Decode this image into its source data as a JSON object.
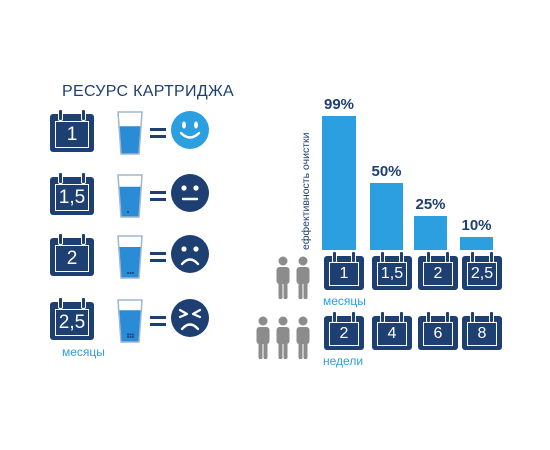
{
  "title": "РЕСУРС КАРТРИДЖА",
  "left_rows": [
    {
      "months": "1",
      "mood": "happy"
    },
    {
      "months": "1,5",
      "mood": "neutral"
    },
    {
      "months": "2",
      "mood": "sad"
    },
    {
      "months": "2,5",
      "mood": "upset"
    }
  ],
  "left_unit_label": "месяцы",
  "people_row_months": 2,
  "people_row_weeks": 3,
  "colors": {
    "navy": "#1d3f72",
    "blue": "#2b9fe0",
    "water": "#2a8bd6",
    "gray": "#8c8c8c"
  },
  "chart_data": {
    "type": "bar",
    "ylabel": "еффективность очистки",
    "ylim": [
      0,
      100
    ],
    "series": [
      {
        "values": [
          99,
          50,
          25,
          10
        ]
      }
    ],
    "value_labels": [
      "99%",
      "50%",
      "25%",
      "10%"
    ],
    "categories_months": [
      "1",
      "1,5",
      "2",
      "2,5"
    ],
    "months_label": "месяцы",
    "categories_weeks": [
      "2",
      "4",
      "6",
      "8"
    ],
    "weeks_label": "недели"
  }
}
